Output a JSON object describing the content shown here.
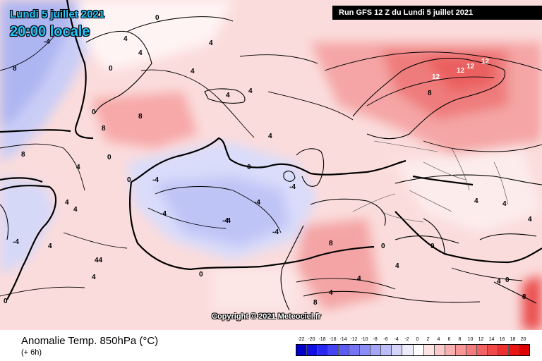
{
  "header": {
    "date": "Lundi 5 juillet 2021",
    "time": "20:00 locale",
    "run": "Run GFS 12 Z du Lundi 5 juillet 2021"
  },
  "footer": {
    "title": "Anomalie Temp. 850hPa (°C)",
    "subtitle": "(+ 6h)",
    "copyright": "Copyright © 2021 Meteociel.fr"
  },
  "legend": {
    "ticks": [
      "-22",
      "-20",
      "-18",
      "-16",
      "-14",
      "-12",
      "-10",
      "-8",
      "-6",
      "-4",
      "-2",
      "0",
      "2",
      "4",
      "6",
      "8",
      "10",
      "12",
      "14",
      "16",
      "18",
      "20"
    ],
    "colors": [
      "#0000c8",
      "#1010e6",
      "#2828f0",
      "#4444f2",
      "#5c5cf4",
      "#7474f5",
      "#8c8cf6",
      "#a4a4f8",
      "#bcbcf9",
      "#d4d4fb",
      "#ececfd",
      "#ffffff",
      "#fde4e4",
      "#fbcaca",
      "#f9b0b0",
      "#f79696",
      "#f57c7c",
      "#f36262",
      "#f14848",
      "#ef2e2e",
      "#ed1414",
      "#e00000"
    ]
  },
  "contours": [
    {
      "label": "8",
      "tone": "b"
    },
    {
      "label": "-4",
      "tone": "b"
    },
    {
      "label": "0",
      "tone": "b"
    },
    {
      "label": "0",
      "tone": "b"
    },
    {
      "label": "4",
      "tone": "b"
    },
    {
      "label": "4",
      "tone": "b"
    },
    {
      "label": "8",
      "tone": "b"
    },
    {
      "label": "8",
      "tone": "b"
    },
    {
      "label": "4",
      "tone": "b"
    },
    {
      "label": "4",
      "tone": "b"
    },
    {
      "label": "4",
      "tone": "b"
    },
    {
      "label": "0",
      "tone": "b"
    },
    {
      "label": "0",
      "tone": "b"
    },
    {
      "label": "4",
      "tone": "b"
    },
    {
      "label": "8",
      "tone": "b"
    },
    {
      "label": "12",
      "tone": "w"
    },
    {
      "label": "12",
      "tone": "w"
    },
    {
      "label": "12",
      "tone": "w"
    },
    {
      "label": "12",
      "tone": "w"
    },
    {
      "label": "8",
      "tone": "b"
    },
    {
      "label": "-4",
      "tone": "b"
    },
    {
      "label": "-4",
      "tone": "b"
    },
    {
      "label": "-4",
      "tone": "b"
    },
    {
      "label": "-4",
      "tone": "b"
    },
    {
      "label": "-4",
      "tone": "b"
    },
    {
      "label": "-4",
      "tone": "b"
    },
    {
      "label": "-4",
      "tone": "b"
    },
    {
      "label": "0",
      "tone": "b"
    },
    {
      "label": "0",
      "tone": "b"
    },
    {
      "label": "4",
      "tone": "b"
    },
    {
      "label": "4",
      "tone": "b"
    },
    {
      "label": "44",
      "tone": "b"
    },
    {
      "label": "4",
      "tone": "b"
    },
    {
      "label": "-4",
      "tone": "b"
    },
    {
      "label": "0",
      "tone": "b"
    },
    {
      "label": "0",
      "tone": "b"
    },
    {
      "label": "8",
      "tone": "b"
    },
    {
      "label": "8",
      "tone": "b"
    },
    {
      "label": "4",
      "tone": "b"
    },
    {
      "label": "4",
      "tone": "b"
    },
    {
      "label": "4",
      "tone": "b"
    },
    {
      "label": "0",
      "tone": "b"
    },
    {
      "label": "0",
      "tone": "b"
    },
    {
      "label": "4",
      "tone": "b"
    },
    {
      "label": "4",
      "tone": "b"
    },
    {
      "label": "4",
      "tone": "b"
    },
    {
      "label": "4",
      "tone": "b"
    },
    {
      "label": "0",
      "tone": "b"
    },
    {
      "label": "4",
      "tone": "b"
    },
    {
      "label": "4",
      "tone": "b"
    },
    {
      "label": "8",
      "tone": "b"
    },
    {
      "label": "4",
      "tone": "b"
    }
  ]
}
